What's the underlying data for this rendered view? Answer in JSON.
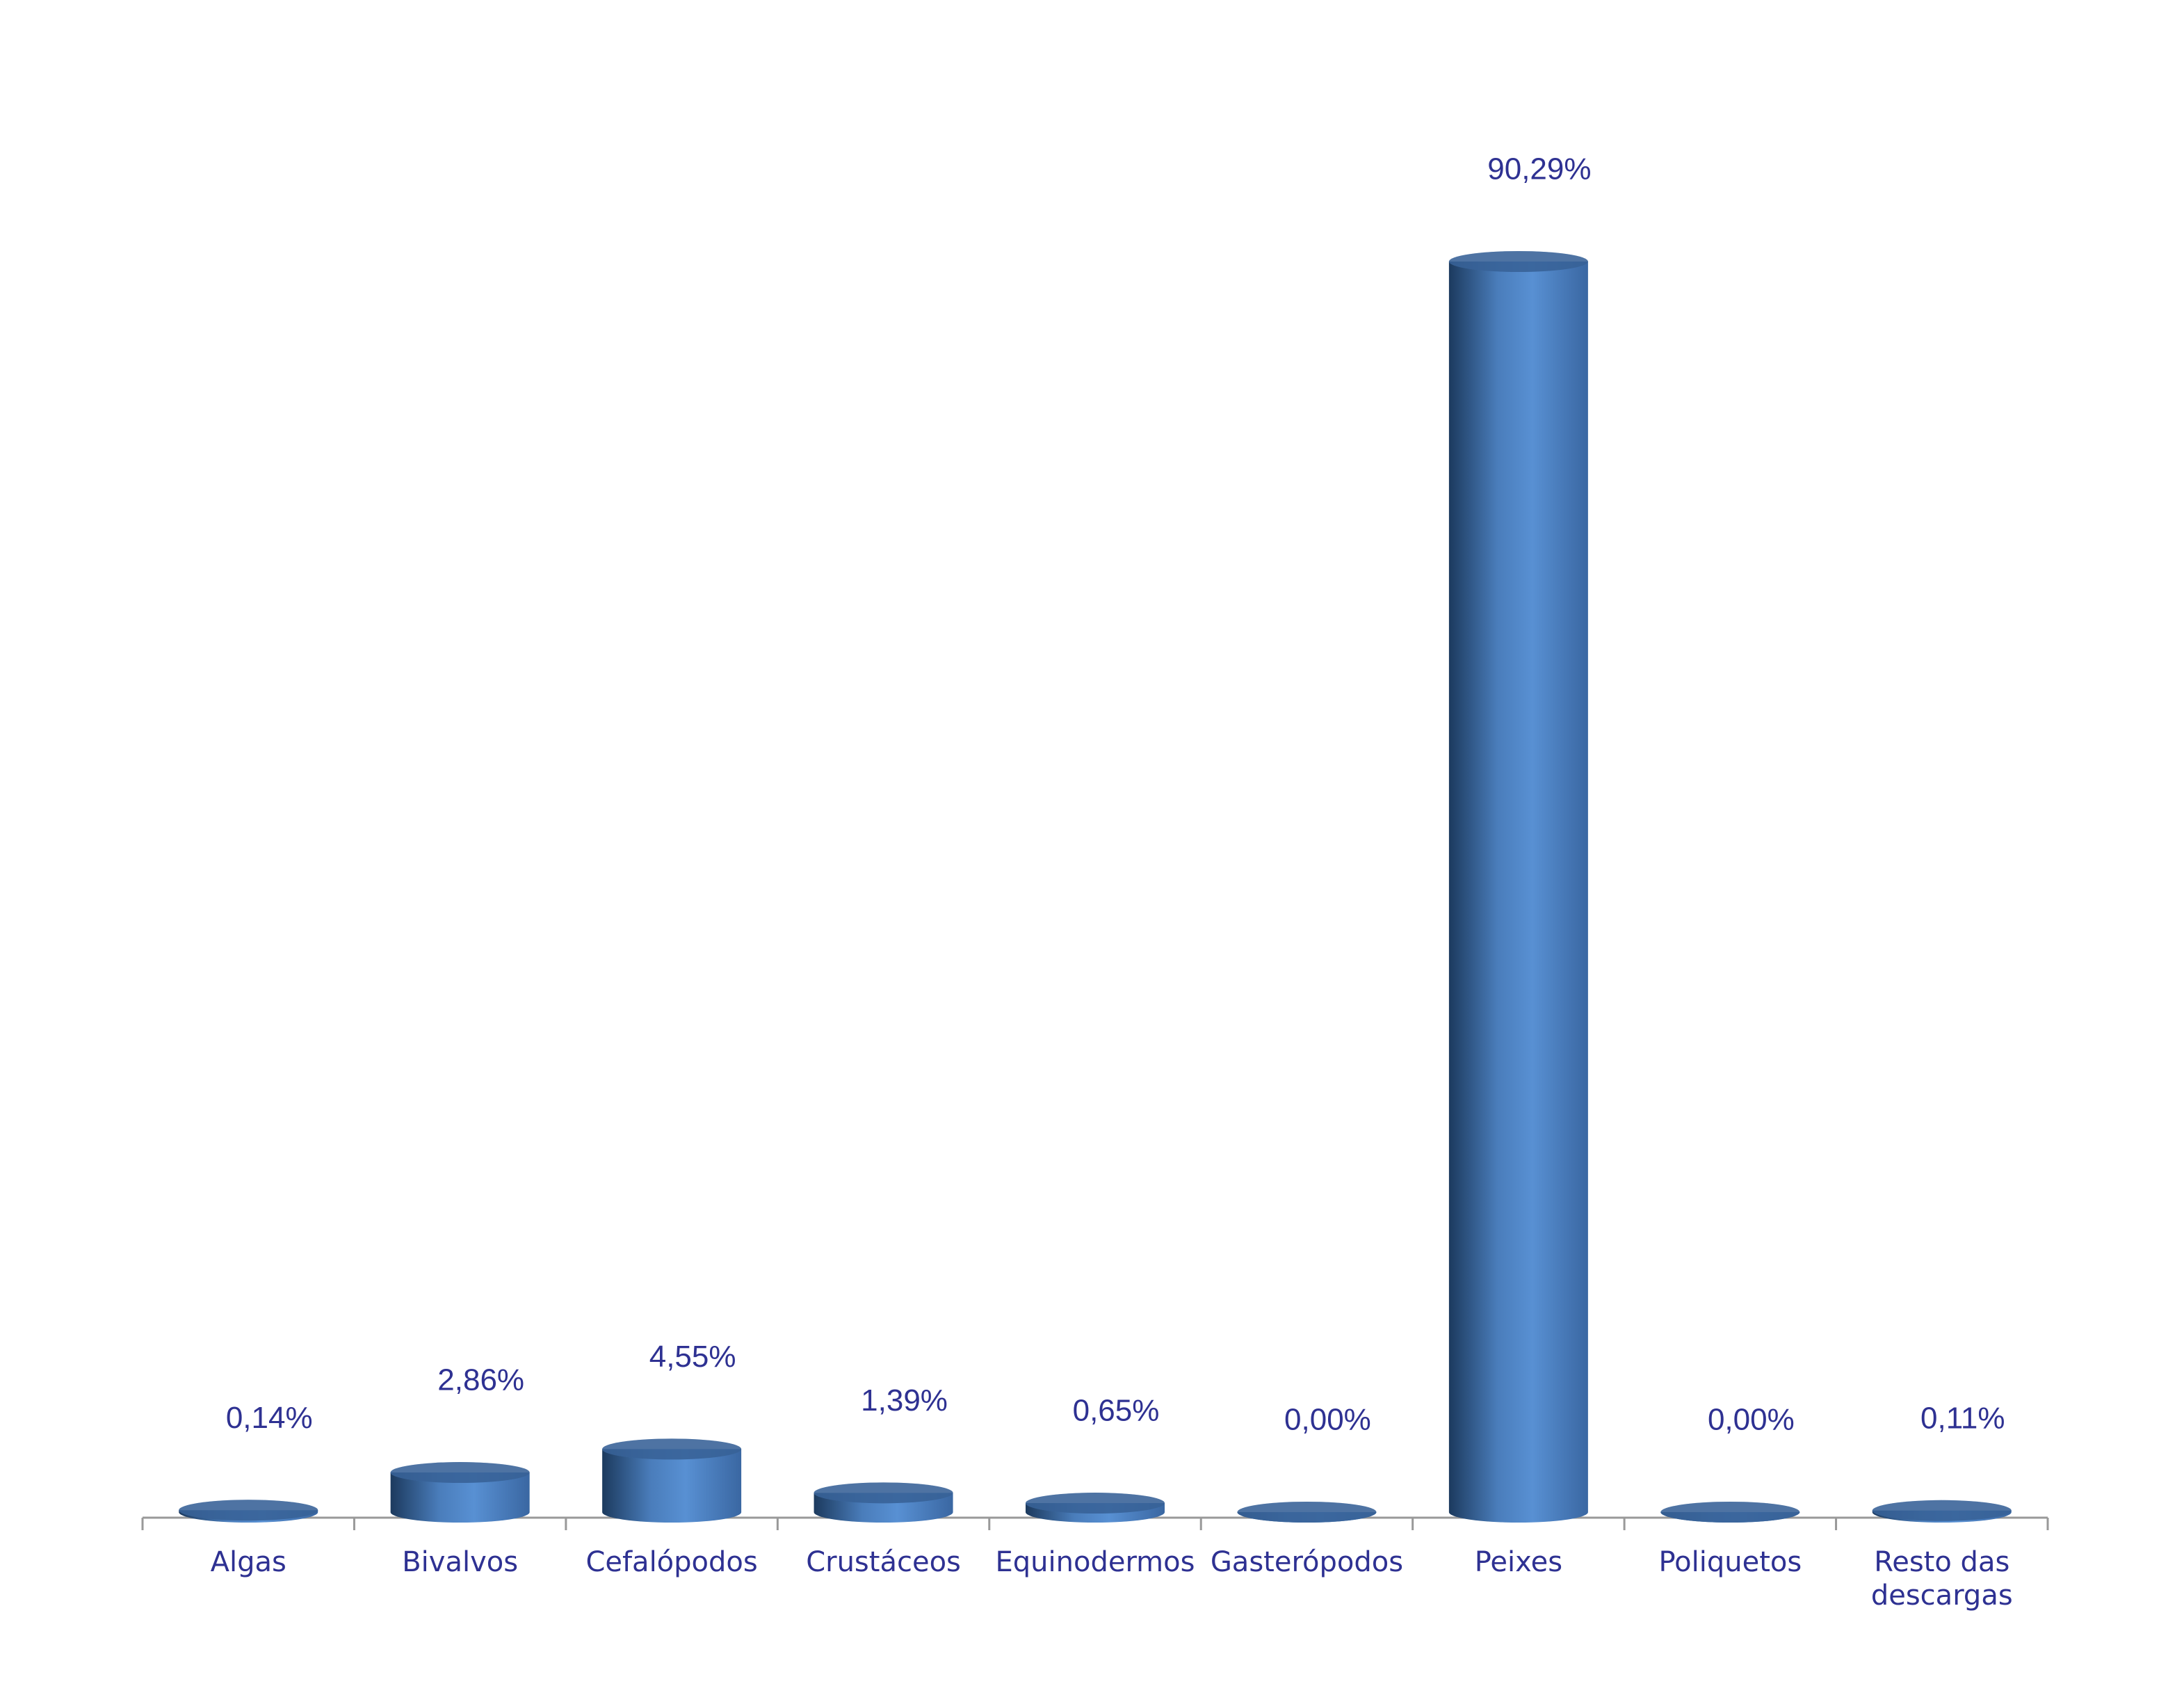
{
  "chart_data": {
    "type": "bar",
    "categories": [
      "Algas",
      "Bivalvos",
      "Cefalópodos",
      "Crustáceos",
      "Equinodermos",
      "Gasterópodos",
      "Peixes",
      "Poliquetos",
      "Resto das descargas"
    ],
    "values": [
      0.14,
      2.86,
      4.55,
      1.39,
      0.65,
      0.0,
      90.29,
      0.0,
      0.11
    ],
    "value_labels": [
      "0,14%",
      "2,86%",
      "4,55%",
      "1,39%",
      "0,65%",
      "0,00%",
      "90,29%",
      "0,00%",
      "0,11%"
    ],
    "color": "#4f81bd"
  }
}
